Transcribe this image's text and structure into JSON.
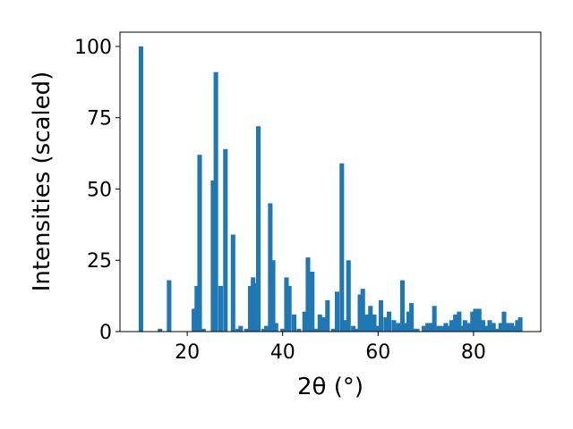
{
  "chart_data": {
    "type": "bar",
    "title": "",
    "xlabel": "2θ (°)",
    "ylabel": "Intensities (scaled)",
    "xlim": [
      5.9,
      94.1
    ],
    "ylim": [
      0,
      105
    ],
    "xticks": [
      20,
      40,
      60,
      80
    ],
    "yticks": [
      0,
      25,
      50,
      75,
      100
    ],
    "bar_width": 0.95,
    "grid": false,
    "color": "#1f77b4",
    "series": [
      {
        "x": [
          10.3,
          14.3,
          16.2,
          21.4,
          22.0,
          22.6,
          23.4,
          25.4,
          26.0,
          27.0,
          28.0,
          29.6,
          30.6,
          31.2,
          32.4,
          33.2,
          33.8,
          34.3,
          34.9,
          36.0,
          36.6,
          37.4,
          38.0,
          38.6,
          40.0,
          40.8,
          41.4,
          42.4,
          43.4,
          44.6,
          45.3,
          46.2,
          47.1,
          47.8,
          48.6,
          49.4,
          50.6,
          51.4,
          52.4,
          53.3,
          53.8,
          54.8,
          55.6,
          56.2,
          56.8,
          57.5,
          58.4,
          59.2,
          59.9,
          60.6,
          61.6,
          62.3,
          63.3,
          64.2,
          65.1,
          65.7,
          66.4,
          67.0,
          67.6,
          68.2,
          69.6,
          70.4,
          71.2,
          71.8,
          72.6,
          73.4,
          74.2,
          74.8,
          75.4,
          76.2,
          77.0,
          77.6,
          78.2,
          79.0,
          79.8,
          80.4,
          81.2,
          82.0,
          82.8,
          83.4,
          84.2,
          85.0,
          85.7,
          86.4,
          87.2,
          88.0,
          88.6,
          89.2,
          89.8
        ],
        "values": [
          100,
          1,
          18,
          8,
          16,
          62,
          1,
          53,
          91,
          16,
          64,
          34,
          1,
          2,
          1,
          16,
          19,
          17,
          72,
          1,
          2,
          45,
          25,
          3,
          1,
          19,
          16,
          6,
          1,
          7,
          26,
          21,
          1,
          6,
          5,
          11,
          1,
          14,
          59,
          4,
          25,
          2,
          1,
          13,
          15,
          6,
          9,
          6,
          2,
          11,
          5,
          7,
          4,
          3,
          18,
          3,
          7,
          10,
          1,
          1,
          2,
          3,
          3,
          9,
          2,
          2,
          3,
          2,
          4,
          6,
          7,
          2,
          4,
          3,
          7,
          8,
          8,
          4,
          2,
          4,
          3,
          1,
          3,
          7,
          3,
          3,
          2,
          4,
          5
        ]
      }
    ]
  }
}
